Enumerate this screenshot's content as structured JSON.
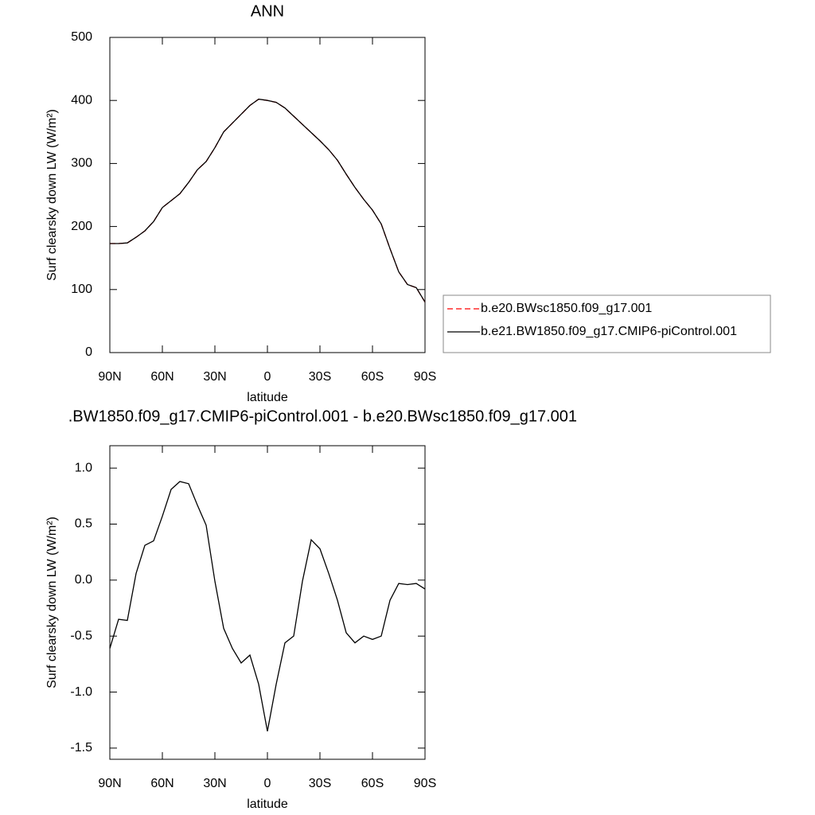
{
  "chart_data": [
    {
      "type": "line",
      "title": "ANN",
      "xlabel": "latitude",
      "ylabel": "Surf clearsky down LW (W/m²)",
      "x": [
        90,
        85,
        80,
        75,
        70,
        65,
        60,
        55,
        50,
        45,
        40,
        35,
        30,
        25,
        20,
        15,
        10,
        5,
        0,
        -5,
        -10,
        -15,
        -20,
        -25,
        -30,
        -35,
        -40,
        -45,
        -50,
        -55,
        -60,
        -65,
        -70,
        -75,
        -80,
        -85,
        -90
      ],
      "series": [
        {
          "name": "b.e20.BWsc1850.f09_g17.001",
          "color": "#ff0000",
          "dash": true,
          "values": [
            173,
            173,
            174,
            183,
            193,
            208,
            230,
            241,
            252,
            270,
            290,
            303,
            325,
            350,
            364,
            378,
            392,
            402,
            400,
            397,
            388,
            375,
            362,
            349,
            336,
            322,
            305,
            283,
            262,
            243,
            226,
            204,
            165,
            128,
            108,
            103,
            80
          ]
        },
        {
          "name": "b.e21.BW1850.f09_g17.CMIP6-piControl.001",
          "color": "#000000",
          "dash": false,
          "values": [
            173,
            173,
            174,
            183,
            193,
            208,
            230,
            241,
            252,
            270,
            290,
            303,
            325,
            350,
            364,
            378,
            392,
            402,
            400,
            397,
            388,
            375,
            362,
            349,
            336,
            322,
            305,
            283,
            262,
            243,
            226,
            204,
            165,
            128,
            108,
            103,
            80
          ]
        }
      ],
      "xlim": [
        90,
        -90
      ],
      "xticks": [
        {
          "value": 90,
          "label": "90N"
        },
        {
          "value": 60,
          "label": "60N"
        },
        {
          "value": 30,
          "label": "30N"
        },
        0,
        {
          "value": -30,
          "label": "30S"
        },
        {
          "value": -60,
          "label": "60S"
        },
        {
          "value": -90,
          "label": "90S"
        }
      ],
      "ylim": [
        0,
        500
      ],
      "yticks": [
        0,
        100,
        200,
        300,
        400,
        500
      ],
      "legend": "right"
    },
    {
      "type": "line",
      "title": ".BW1850.f09_g17.CMIP6-piControl.001 - b.e20.BWsc1850.f09_g17.001",
      "xlabel": "latitude",
      "ylabel": "Surf clearsky down LW (W/m²)",
      "x": [
        90,
        85,
        80,
        75,
        70,
        65,
        60,
        55,
        50,
        45,
        40,
        35,
        30,
        25,
        20,
        15,
        10,
        5,
        0,
        -5,
        -10,
        -15,
        -20,
        -25,
        -30,
        -35,
        -40,
        -45,
        -50,
        -55,
        -60,
        -65,
        -70,
        -75,
        -80,
        -85,
        -90
      ],
      "color": "#000000",
      "values": [
        -0.61,
        -0.35,
        -0.36,
        0.06,
        0.31,
        0.35,
        0.57,
        0.81,
        0.88,
        0.86,
        0.67,
        0.49,
        -0.01,
        -0.43,
        -0.61,
        -0.74,
        -0.67,
        -0.93,
        -1.35,
        -0.93,
        -0.56,
        -0.5,
        -0.01,
        0.36,
        0.28,
        0.06,
        -0.18,
        -0.47,
        -0.56,
        -0.5,
        -0.53,
        -0.5,
        -0.18,
        -0.03,
        -0.04,
        -0.03,
        -0.08
      ],
      "xlim": [
        90,
        -90
      ],
      "xticks": [
        {
          "value": 90,
          "label": "90N"
        },
        {
          "value": 60,
          "label": "60N"
        },
        {
          "value": 30,
          "label": "30N"
        },
        0,
        {
          "value": -30,
          "label": "30S"
        },
        {
          "value": -60,
          "label": "60S"
        },
        {
          "value": -90,
          "label": "90S"
        }
      ],
      "ylim": [
        -1.6,
        1.2
      ],
      "yticks": [
        {
          "value": 1,
          "label": "1.0"
        },
        0.5,
        {
          "value": 0,
          "label": "0.0"
        },
        -0.5,
        {
          "value": -1,
          "label": "-1.0"
        },
        -1.5
      ]
    }
  ]
}
